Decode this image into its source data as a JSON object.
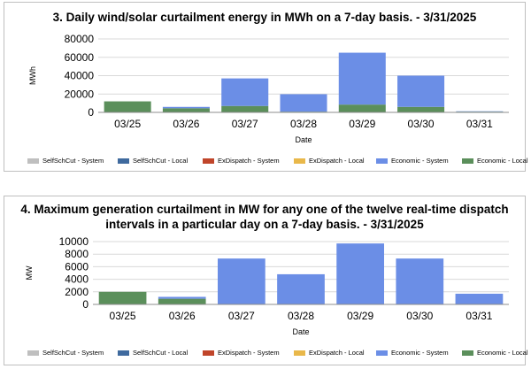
{
  "legend": [
    {
      "label": "SelfSchCut - System",
      "color": "#bfbfbf"
    },
    {
      "label": "SelfSchCut - Local",
      "color": "#3f6a9e"
    },
    {
      "label": "ExDispatch - System",
      "color": "#c0452a"
    },
    {
      "label": "ExDispatch - Local",
      "color": "#e9b84a"
    },
    {
      "label": "Economic - System",
      "color": "#6b8ee6"
    },
    {
      "label": "Economic - Local",
      "color": "#5b8f5b"
    }
  ],
  "chart_data": [
    {
      "type": "bar",
      "stacked": true,
      "title": "3.   Daily wind/solar curtailment energy in MWh on a 7-day basis. - 3/31/2025",
      "xlabel": "Date",
      "ylabel": "MWh",
      "categories": [
        "03/25",
        "03/26",
        "03/27",
        "03/28",
        "03/29",
        "03/30",
        "03/31"
      ],
      "ylim": [
        0,
        80000
      ],
      "yticks": [
        "0",
        "20000",
        "40000",
        "60000",
        "80000"
      ],
      "grid": true,
      "legend_position": "bottom",
      "series": [
        {
          "name": "SelfSchCut - System",
          "values": [
            0,
            0,
            0,
            0,
            0,
            0,
            0
          ]
        },
        {
          "name": "SelfSchCut - Local",
          "values": [
            0,
            0,
            0,
            0,
            0,
            0,
            0
          ]
        },
        {
          "name": "ExDispatch - System",
          "values": [
            0,
            0,
            0,
            0,
            0,
            0,
            0
          ]
        },
        {
          "name": "ExDispatch - Local",
          "values": [
            0,
            0,
            0,
            0,
            0,
            0,
            0
          ]
        },
        {
          "name": "Economic - Local",
          "values": [
            12000,
            4500,
            7000,
            800,
            8500,
            6000,
            800
          ]
        },
        {
          "name": "Economic - System",
          "values": [
            0,
            1500,
            30000,
            19000,
            56500,
            34000,
            400
          ]
        }
      ]
    },
    {
      "type": "bar",
      "stacked": true,
      "title": "4.    Maximum generation curtailment in MW for any one of the twelve real-time dispatch intervals in a particular day on a 7-day basis. - 3/31/2025",
      "xlabel": "Date",
      "ylabel": "MW",
      "categories": [
        "03/25",
        "03/26",
        "03/27",
        "03/28",
        "03/29",
        "03/30",
        "03/31"
      ],
      "ylim": [
        0,
        10000
      ],
      "yticks": [
        "0",
        "2000",
        "4000",
        "6000",
        "8000",
        "10000"
      ],
      "grid": true,
      "legend_position": "bottom",
      "series": [
        {
          "name": "SelfSchCut - System",
          "values": [
            0,
            0,
            0,
            0,
            0,
            0,
            0
          ]
        },
        {
          "name": "SelfSchCut - Local",
          "values": [
            0,
            0,
            0,
            0,
            0,
            0,
            0
          ]
        },
        {
          "name": "ExDispatch - System",
          "values": [
            0,
            0,
            0,
            0,
            0,
            0,
            0
          ]
        },
        {
          "name": "ExDispatch - Local",
          "values": [
            0,
            0,
            0,
            0,
            0,
            0,
            0
          ]
        },
        {
          "name": "Economic - Local",
          "values": [
            2000,
            900,
            0,
            0,
            0,
            0,
            0
          ]
        },
        {
          "name": "Economic - System",
          "values": [
            0,
            300,
            7300,
            4800,
            9700,
            7300,
            1700
          ]
        }
      ]
    }
  ]
}
